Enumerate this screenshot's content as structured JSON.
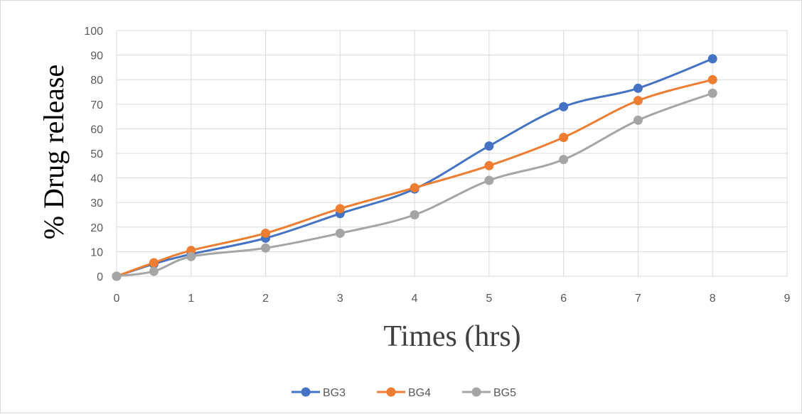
{
  "chart_data": {
    "type": "line",
    "smooth": true,
    "title": "",
    "xlabel": "Times (hrs)",
    "ylabel": "% Drug release",
    "xlim": [
      0,
      9
    ],
    "ylim": [
      0,
      100
    ],
    "x_ticks": [
      "0",
      "1",
      "2",
      "3",
      "4",
      "5",
      "6",
      "7",
      "8",
      "9"
    ],
    "y_ticks": [
      "0",
      "10",
      "20",
      "30",
      "40",
      "50",
      "60",
      "70",
      "80",
      "90",
      "100"
    ],
    "grid": "vertical and horizontal",
    "legend_position": "bottom",
    "x": [
      0,
      0.5,
      1,
      2,
      3,
      4,
      5,
      6,
      7,
      8
    ],
    "series": [
      {
        "name": "BG3",
        "color": "#4472c4",
        "values": [
          0,
          5,
          9,
          15.5,
          25.5,
          35.5,
          53,
          69,
          76.5,
          88.5
        ]
      },
      {
        "name": "BG4",
        "color": "#ed7d31",
        "values": [
          0,
          5.5,
          10.5,
          17.5,
          27.5,
          36,
          45,
          56.5,
          71.5,
          80
        ]
      },
      {
        "name": "BG5",
        "color": "#a5a5a5",
        "values": [
          0,
          2,
          8,
          11.5,
          17.5,
          25,
          39,
          47.5,
          63.5,
          74.5
        ]
      }
    ]
  }
}
